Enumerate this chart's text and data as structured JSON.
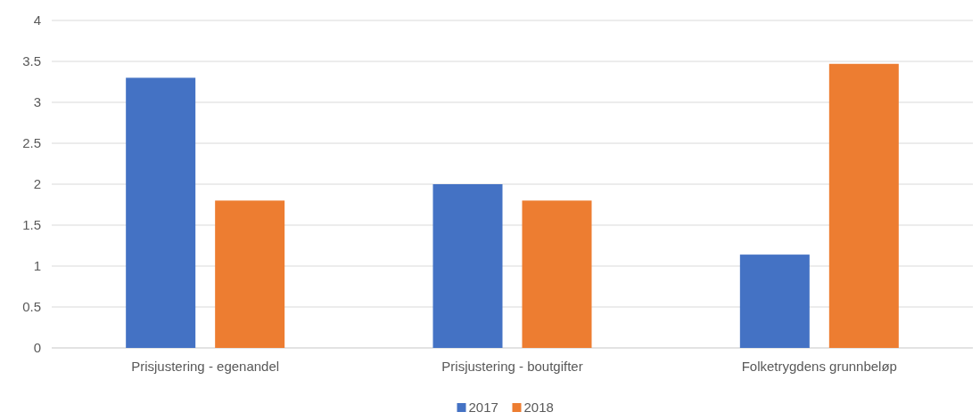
{
  "chart_data": {
    "type": "bar",
    "categories": [
      "Prisjustering - egenandel",
      "Prisjustering - boutgifter",
      "Folketrygdens grunnbeløp"
    ],
    "series": [
      {
        "name": "2017",
        "color": "#4472c4",
        "values": [
          3.3,
          2.0,
          1.14
        ]
      },
      {
        "name": "2018",
        "color": "#ed7d31",
        "values": [
          1.8,
          1.8,
          3.47
        ]
      }
    ],
    "ylim": [
      0,
      4
    ],
    "yticks": [
      0,
      0.5,
      1,
      1.5,
      2,
      2.5,
      3,
      3.5,
      4
    ],
    "grid": "y",
    "legend": "bottom"
  }
}
